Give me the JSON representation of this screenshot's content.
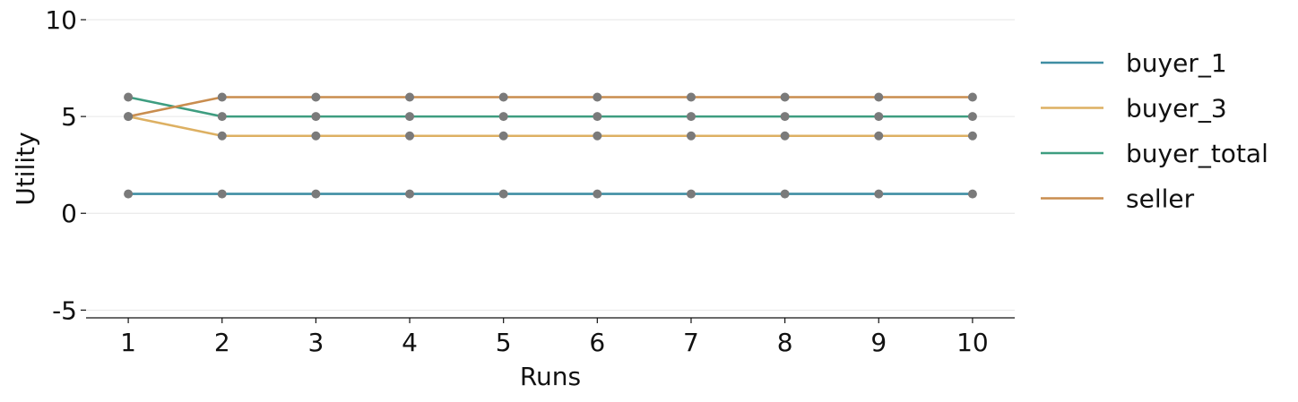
{
  "chart_data": {
    "type": "line",
    "xlabel": "Runs",
    "ylabel": "Utility",
    "x": [
      1,
      2,
      3,
      4,
      5,
      6,
      7,
      8,
      9,
      10
    ],
    "xticks": [
      "1",
      "2",
      "3",
      "4",
      "5",
      "6",
      "7",
      "8",
      "9",
      "10"
    ],
    "yticks": [
      -5,
      0,
      5,
      10
    ],
    "ytick_labels": [
      "-5",
      "0",
      "5",
      "10"
    ],
    "ylim": [
      -5.4,
      10
    ],
    "xlim": [
      0.55,
      10.45
    ],
    "grid": "horizontal",
    "legend_position": "right",
    "marker_color": "#7a7a7a",
    "series": [
      {
        "name": "buyer_1",
        "color": "#3f8ea3",
        "values": [
          1,
          1,
          1,
          1,
          1,
          1,
          1,
          1,
          1,
          1
        ]
      },
      {
        "name": "buyer_3",
        "color": "#ddb062",
        "values": [
          5,
          4,
          4,
          4,
          4,
          4,
          4,
          4,
          4,
          4
        ]
      },
      {
        "name": "buyer_total",
        "color": "#3e9d80",
        "values": [
          6,
          5,
          5,
          5,
          5,
          5,
          5,
          5,
          5,
          5
        ]
      },
      {
        "name": "seller",
        "color": "#c98d4f",
        "values": [
          5,
          6,
          6,
          6,
          6,
          6,
          6,
          6,
          6,
          6
        ]
      }
    ]
  }
}
